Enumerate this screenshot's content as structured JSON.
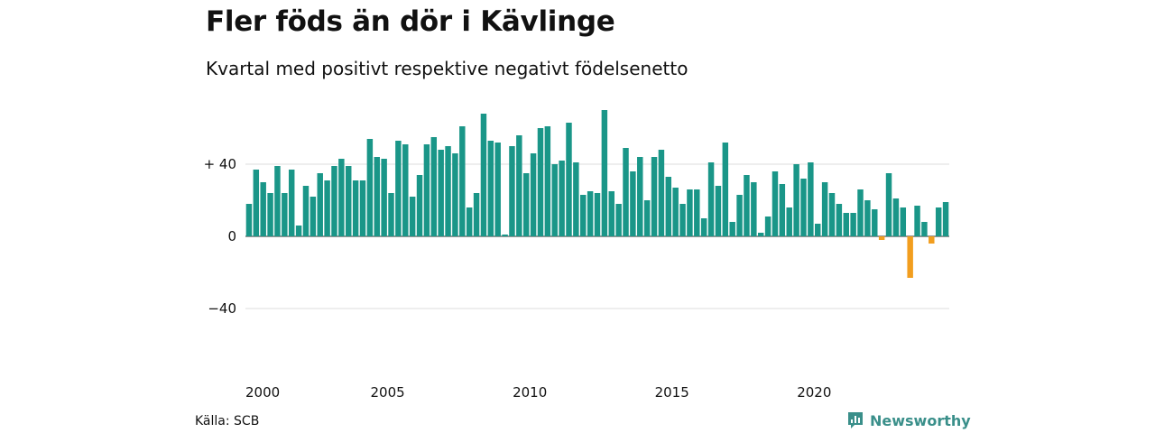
{
  "title": "Fler föds än dör i Kävlinge",
  "subtitle": "Kvartal med positivt respektive negativt födelsenetto",
  "source": "Källa: SCB",
  "brand": "Newsworthy",
  "colors": {
    "positive": "#1a9688",
    "negative": "#f29e1f",
    "grid": "#dddddd",
    "brand": "#3a8f8a"
  },
  "chart_data": {
    "type": "bar",
    "ylim": [
      -60,
      72
    ],
    "y_ticks": [
      {
        "value": 40,
        "label": "+ 40"
      },
      {
        "value": 0,
        "label": "0"
      },
      {
        "value": -40,
        "label": "−40"
      }
    ],
    "x_ticks": [
      {
        "year": 2000,
        "label": "2000"
      },
      {
        "year": 2005,
        "label": "2005"
      },
      {
        "year": 2010,
        "label": "2010"
      },
      {
        "year": 2015,
        "label": "2015"
      },
      {
        "year": 2020,
        "label": "2020"
      }
    ],
    "start_year": 2000,
    "values": [
      18,
      37,
      30,
      24,
      39,
      24,
      37,
      6,
      28,
      22,
      35,
      31,
      39,
      43,
      39,
      31,
      31,
      54,
      44,
      43,
      24,
      53,
      51,
      22,
      34,
      51,
      55,
      48,
      50,
      46,
      61,
      16,
      24,
      68,
      53,
      52,
      1,
      50,
      56,
      35,
      46,
      60,
      61,
      40,
      42,
      63,
      41,
      23,
      25,
      24,
      70,
      25,
      18,
      49,
      36,
      44,
      20,
      44,
      48,
      33,
      27,
      18,
      26,
      26,
      10,
      41,
      28,
      52,
      8,
      23,
      34,
      30,
      2,
      11,
      36,
      29,
      16,
      40,
      32,
      41,
      7,
      30,
      24,
      18,
      13,
      13,
      26,
      20,
      15,
      -2,
      35,
      21,
      16,
      -23,
      17,
      8,
      -4,
      16,
      19
    ]
  }
}
